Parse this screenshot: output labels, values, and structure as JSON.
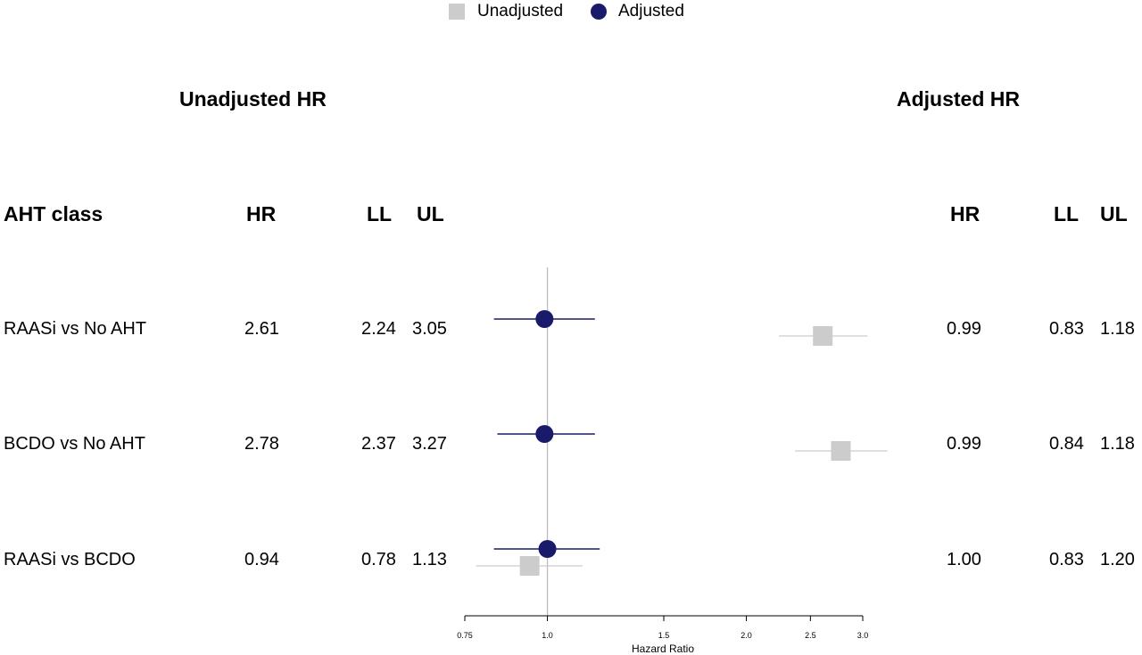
{
  "legend": [
    {
      "label": "Unadjusted",
      "color": "#cccccc",
      "marker": "square"
    },
    {
      "label": "Adjusted",
      "color": "#1a1a6b",
      "marker": "circle"
    }
  ],
  "titles": {
    "unadjusted": "Unadjusted HR",
    "adjusted": "Adjusted HR"
  },
  "headers": {
    "label": "AHT class",
    "u_hr": "HR",
    "u_ll": "LL",
    "u_ul": "UL",
    "a_hr": "HR",
    "a_ll": "LL",
    "a_ul": "UL"
  },
  "rows": [
    {
      "label": "RAASi vs No AHT",
      "u_hr": "2.61",
      "u_ll": "2.24",
      "u_ul": "3.05",
      "a_hr": "0.99",
      "a_ll": "0.83",
      "a_ul": "1.18"
    },
    {
      "label": "BCDO vs No AHT",
      "u_hr": "2.78",
      "u_ll": "2.37",
      "u_ul": "3.27",
      "a_hr": "0.99",
      "a_ll": "0.84",
      "a_ul": "1.18"
    },
    {
      "label": "RAASi vs BCDO",
      "u_hr": "0.94",
      "u_ll": "0.78",
      "u_ul": "1.13",
      "a_hr": "1.00",
      "a_ll": "0.83",
      "a_ul": "1.20"
    }
  ],
  "chart_data": {
    "type": "forest",
    "xlabel": "Hazard Ratio",
    "x_scale": "log",
    "xlim": [
      0.75,
      3.0
    ],
    "x_ticks": [
      0.75,
      1.0,
      1.5,
      2.0,
      2.5,
      3.0
    ],
    "x_tick_labels": [
      "0.75",
      "1.0",
      "1.5",
      "2.0",
      "2.5",
      "3.0"
    ],
    "reference_line": 1.0,
    "categories": [
      "RAASi vs No AHT",
      "BCDO vs No AHT",
      "RAASi vs BCDO"
    ],
    "series": [
      {
        "name": "Unadjusted",
        "color": "#cccccc",
        "marker": "square",
        "hr": [
          2.61,
          2.78,
          0.94
        ],
        "ll": [
          2.24,
          2.37,
          0.78
        ],
        "ul": [
          3.05,
          3.27,
          1.13
        ]
      },
      {
        "name": "Adjusted",
        "color": "#1a1a6b",
        "marker": "circle",
        "hr": [
          0.99,
          0.99,
          1.0
        ],
        "ll": [
          0.83,
          0.84,
          0.83
        ],
        "ul": [
          1.18,
          1.18,
          1.2
        ]
      }
    ]
  }
}
